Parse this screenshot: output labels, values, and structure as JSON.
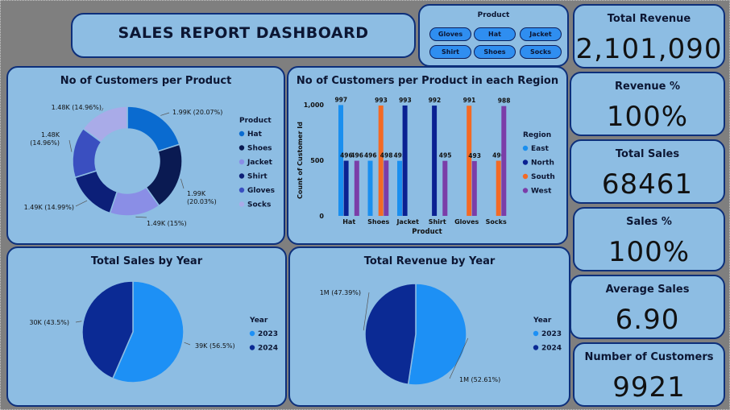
{
  "dashboard": {
    "title": "SALES REPORT DASHBOARD"
  },
  "slicer": {
    "title": "Product",
    "items": [
      "Gloves",
      "Hat",
      "Jacket",
      "Shirt",
      "Shoes",
      "Socks"
    ]
  },
  "kpis": [
    {
      "label": "Total Revenue",
      "value": "2,101,090"
    },
    {
      "label": "Revenue %",
      "value": "100%"
    },
    {
      "label": "Total Sales",
      "value": "68461"
    },
    {
      "label": "Sales %",
      "value": "100%"
    },
    {
      "label": "Average Sales",
      "value": "6.90"
    },
    {
      "label": "Number of Customers",
      "value": "9921"
    }
  ],
  "colors": {
    "hat": "#0a6bd0",
    "shoes": "#0a1a52",
    "jacket": "#8a8ee6",
    "shirt": "#0c1f78",
    "gloves": "#3a4fc0",
    "socks": "#a9abe8",
    "east": "#1a8fef",
    "north": "#0a2192",
    "south": "#f36a25",
    "west": "#7b3da8",
    "y2023": "#1d90f5",
    "y2024": "#0b2a94"
  },
  "chart_data": [
    {
      "type": "pie",
      "variant": "donut",
      "title": "No of Customers per Product",
      "legend_title": "Product",
      "legend_position": "right",
      "categories": [
        "Hat",
        "Shoes",
        "Jacket",
        "Shirt",
        "Gloves",
        "Socks"
      ],
      "values": [
        1990,
        1990,
        1490,
        1490,
        1480,
        1480
      ],
      "labels": [
        "1.99K (20.07%)",
        "1.99K (20.03%)",
        "1.49K (15%)",
        "1.49K (14.99%)",
        "1.48K (14.96%)",
        "1.48K (14.96%)"
      ]
    },
    {
      "type": "bar",
      "title": "No of Customers per Product in each Region",
      "xlabel": "Product",
      "ylabel": "Count of Customer Id",
      "legend_title": "Region",
      "legend_position": "right",
      "categories": [
        "Hat",
        "Shoes",
        "Jacket",
        "Shirt",
        "Gloves",
        "Socks"
      ],
      "ylim": [
        0,
        1000
      ],
      "yticks": [
        "0",
        "500",
        "1,000"
      ],
      "grid": false,
      "series": [
        {
          "name": "East",
          "values": [
            997,
            496,
            495,
            null,
            null,
            null
          ]
        },
        {
          "name": "North",
          "values": [
            496,
            null,
            993,
            992,
            null,
            null
          ]
        },
        {
          "name": "South",
          "values": [
            null,
            993,
            null,
            null,
            991,
            496
          ]
        },
        {
          "name": "West",
          "values": [
            496,
            498,
            null,
            495,
            493,
            988
          ]
        }
      ],
      "data_labels": [
        [
          "997",
          "496",
          "495",
          null,
          null,
          null
        ],
        [
          "496",
          null,
          "993",
          "992",
          null,
          null
        ],
        [
          null,
          "993",
          null,
          null,
          "991",
          "496"
        ],
        [
          "496",
          "498",
          null,
          "495",
          "493",
          "988"
        ]
      ]
    },
    {
      "type": "pie",
      "title": "Total Sales by Year",
      "legend_title": "Year",
      "legend_position": "right",
      "categories": [
        "2023",
        "2024"
      ],
      "values": [
        39000,
        30000
      ],
      "labels": [
        "39K (56.5%)",
        "30K (43.5%)"
      ]
    },
    {
      "type": "pie",
      "title": "Total Revenue by Year",
      "legend_title": "Year",
      "legend_position": "right",
      "categories": [
        "2023",
        "2024"
      ],
      "values": [
        1100000,
        1000000
      ],
      "labels": [
        "1M (52.61%)",
        "1M (47.39%)"
      ]
    }
  ]
}
